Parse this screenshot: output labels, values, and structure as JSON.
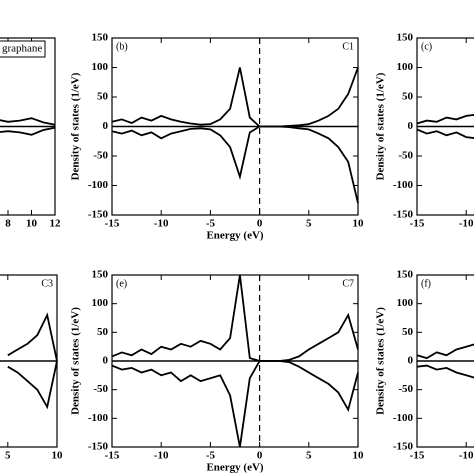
{
  "chart_data": [
    {
      "type": "line",
      "annotation": "graphane",
      "x": [
        7,
        8,
        9,
        10,
        11,
        12
      ],
      "series": [
        {
          "color": "#000000",
          "values": [
            12,
            8,
            10,
            14,
            7,
            3
          ]
        },
        {
          "color": "#000000",
          "values": [
            -10,
            -8,
            -10,
            -14,
            -6,
            -2
          ]
        }
      ],
      "xlim": [
        -12,
        12
      ],
      "ylim": [
        -150,
        150
      ],
      "xticks": [
        8,
        10,
        12
      ]
    },
    {
      "type": "line",
      "panel_label": "(b)",
      "corner_label": "C1",
      "xlabel": "Energy (eV)",
      "ylabel": "Density of states (1/eV)",
      "x": [
        -15,
        -14,
        -13,
        -12,
        -11,
        -10,
        -9,
        -8,
        -7,
        -6,
        -5,
        -4,
        -3,
        -2,
        -1,
        0,
        1,
        2,
        3,
        4,
        5,
        6,
        7,
        8,
        9,
        10
      ],
      "series": [
        {
          "color": "#000000",
          "values": [
            8,
            12,
            6,
            15,
            10,
            18,
            12,
            8,
            5,
            3,
            4,
            12,
            30,
            100,
            15,
            0,
            0,
            0,
            1,
            2,
            4,
            10,
            18,
            30,
            55,
            100
          ]
        },
        {
          "color": "#000000",
          "values": [
            -8,
            -12,
            -7,
            -15,
            -10,
            -20,
            -12,
            -8,
            -4,
            -3,
            -5,
            -15,
            -35,
            -85,
            -10,
            0,
            0,
            0,
            -1,
            -3,
            -5,
            -12,
            -20,
            -35,
            -60,
            -130
          ]
        }
      ],
      "xlim": [
        -15,
        10
      ],
      "ylim": [
        -150,
        150
      ],
      "xticks": [
        -15,
        -10,
        -5,
        0,
        5,
        10
      ],
      "yticks": [
        -150,
        -100,
        -50,
        0,
        50,
        100,
        150
      ],
      "vline": 0
    },
    {
      "type": "line",
      "panel_label": "(c)",
      "ylabel": "Density of states (1/eV)",
      "x": [
        -15,
        -14,
        -13,
        -12,
        -11,
        -10,
        -9
      ],
      "series": [
        {
          "color": "#000000",
          "values": [
            5,
            10,
            8,
            15,
            12,
            18,
            20
          ]
        },
        {
          "color": "#000000",
          "values": [
            -5,
            -12,
            -8,
            -15,
            -10,
            -18,
            -20
          ]
        }
      ],
      "xlim": [
        -15,
        10
      ],
      "ylim": [
        -150,
        150
      ],
      "xticks": [
        -15,
        -10
      ],
      "yticks": [
        -150,
        -100,
        -50,
        0,
        50,
        100,
        150
      ]
    },
    {
      "type": "line",
      "corner_label": "C3",
      "x": [
        5,
        6,
        7,
        8,
        9,
        10
      ],
      "series": [
        {
          "color": "#000000",
          "values": [
            10,
            20,
            30,
            45,
            80,
            0
          ]
        },
        {
          "color": "#000000",
          "values": [
            -10,
            -20,
            -35,
            -50,
            -80,
            0
          ]
        }
      ],
      "xlim": [
        -15,
        10
      ],
      "ylim": [
        -150,
        150
      ],
      "xticks": [
        5,
        10
      ]
    },
    {
      "type": "line",
      "panel_label": "(e)",
      "corner_label": "C7",
      "xlabel": "Energy (eV)",
      "ylabel": "Density of states (1/eV)",
      "x": [
        -15,
        -14,
        -13,
        -12,
        -11,
        -10,
        -9,
        -8,
        -7,
        -6,
        -5,
        -4,
        -3,
        -2,
        -1,
        0,
        1,
        2,
        3,
        4,
        5,
        6,
        7,
        8,
        9,
        10
      ],
      "series": [
        {
          "color": "#000000",
          "values": [
            8,
            15,
            10,
            20,
            12,
            25,
            20,
            30,
            25,
            35,
            30,
            20,
            40,
            150,
            5,
            0,
            0,
            0,
            2,
            8,
            20,
            30,
            40,
            50,
            80,
            20
          ]
        },
        {
          "color": "#000000",
          "values": [
            -8,
            -15,
            -12,
            -20,
            -15,
            -25,
            -20,
            -35,
            -25,
            -35,
            -30,
            -25,
            -60,
            -150,
            -30,
            0,
            0,
            0,
            -2,
            -10,
            -20,
            -30,
            -40,
            -55,
            -85,
            -20
          ]
        }
      ],
      "xlim": [
        -15,
        10
      ],
      "ylim": [
        -150,
        150
      ],
      "xticks": [
        -15,
        -10,
        -5,
        0,
        5,
        10
      ],
      "yticks": [
        -150,
        -100,
        -50,
        0,
        50,
        100,
        150
      ],
      "vline": 0
    },
    {
      "type": "line",
      "panel_label": "(f)",
      "ylabel": "Density of states (1/eV)",
      "x": [
        -15,
        -14,
        -13,
        -12,
        -11,
        -10,
        -9
      ],
      "series": [
        {
          "color": "#000000",
          "values": [
            10,
            5,
            15,
            10,
            20,
            25,
            30
          ]
        },
        {
          "color": "#000000",
          "values": [
            -10,
            -8,
            -15,
            -12,
            -20,
            -25,
            -30
          ]
        }
      ],
      "xlim": [
        -15,
        10
      ],
      "ylim": [
        -150,
        150
      ],
      "xticks": [
        -15,
        -10
      ],
      "yticks": [
        -150,
        -100,
        -50,
        0,
        50,
        100,
        150
      ]
    }
  ]
}
